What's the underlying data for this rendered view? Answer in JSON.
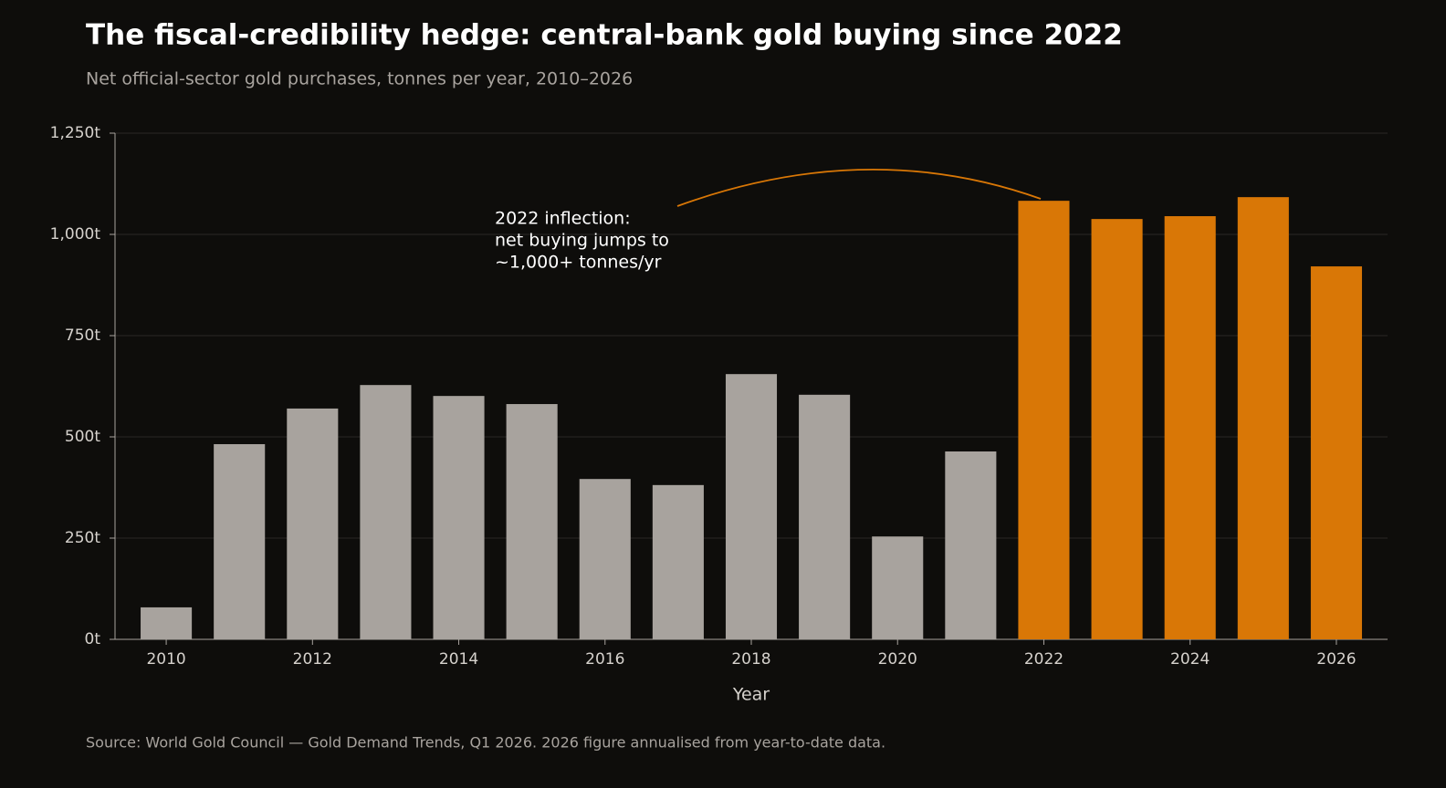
{
  "chart_data": {
    "type": "bar",
    "title": "The fiscal-credibility hedge: central-bank gold buying since 2022",
    "subtitle": "Net official-sector gold purchases, tonnes per year, 2010–2026",
    "x_label": "Year",
    "source": "Source: World Gold Council — Gold Demand Trends, Q1 2026. 2026 figure annualised from year-to-date data.",
    "annotation": [
      "2022 inflection:",
      "net buying jumps to",
      "~1,000+ tonnes/yr"
    ],
    "x": [
      2010,
      2011,
      2012,
      2013,
      2014,
      2015,
      2016,
      2017,
      2018,
      2019,
      2020,
      2021,
      2022,
      2023,
      2024,
      2025,
      2026
    ],
    "values": [
      79,
      482,
      570,
      628,
      601,
      581,
      396,
      381,
      655,
      604,
      254,
      464,
      1083,
      1038,
      1045,
      1092,
      921
    ],
    "colors": [
      "#a8a39e",
      "#a8a39e",
      "#a8a39e",
      "#a8a39e",
      "#a8a39e",
      "#a8a39e",
      "#a8a39e",
      "#a8a39e",
      "#a8a39e",
      "#a8a39e",
      "#a8a39e",
      "#a8a39e",
      "#d97706",
      "#d97706",
      "#d97706",
      "#d97706",
      "#d97706"
    ],
    "xlim": [
      2009.3,
      2026.7
    ],
    "xticks": [
      2010,
      2012,
      2014,
      2016,
      2018,
      2020,
      2022,
      2024,
      2026
    ],
    "ylim": [
      0,
      1250
    ],
    "yticks": [
      {
        "value": 0,
        "label": "0t"
      },
      {
        "value": 250,
        "label": "250t"
      },
      {
        "value": 500,
        "label": "500t"
      },
      {
        "value": 750,
        "label": "750t"
      },
      {
        "value": 1000,
        "label": "1,000t"
      },
      {
        "value": 1250,
        "label": "1,250t"
      }
    ],
    "grid": true
  }
}
